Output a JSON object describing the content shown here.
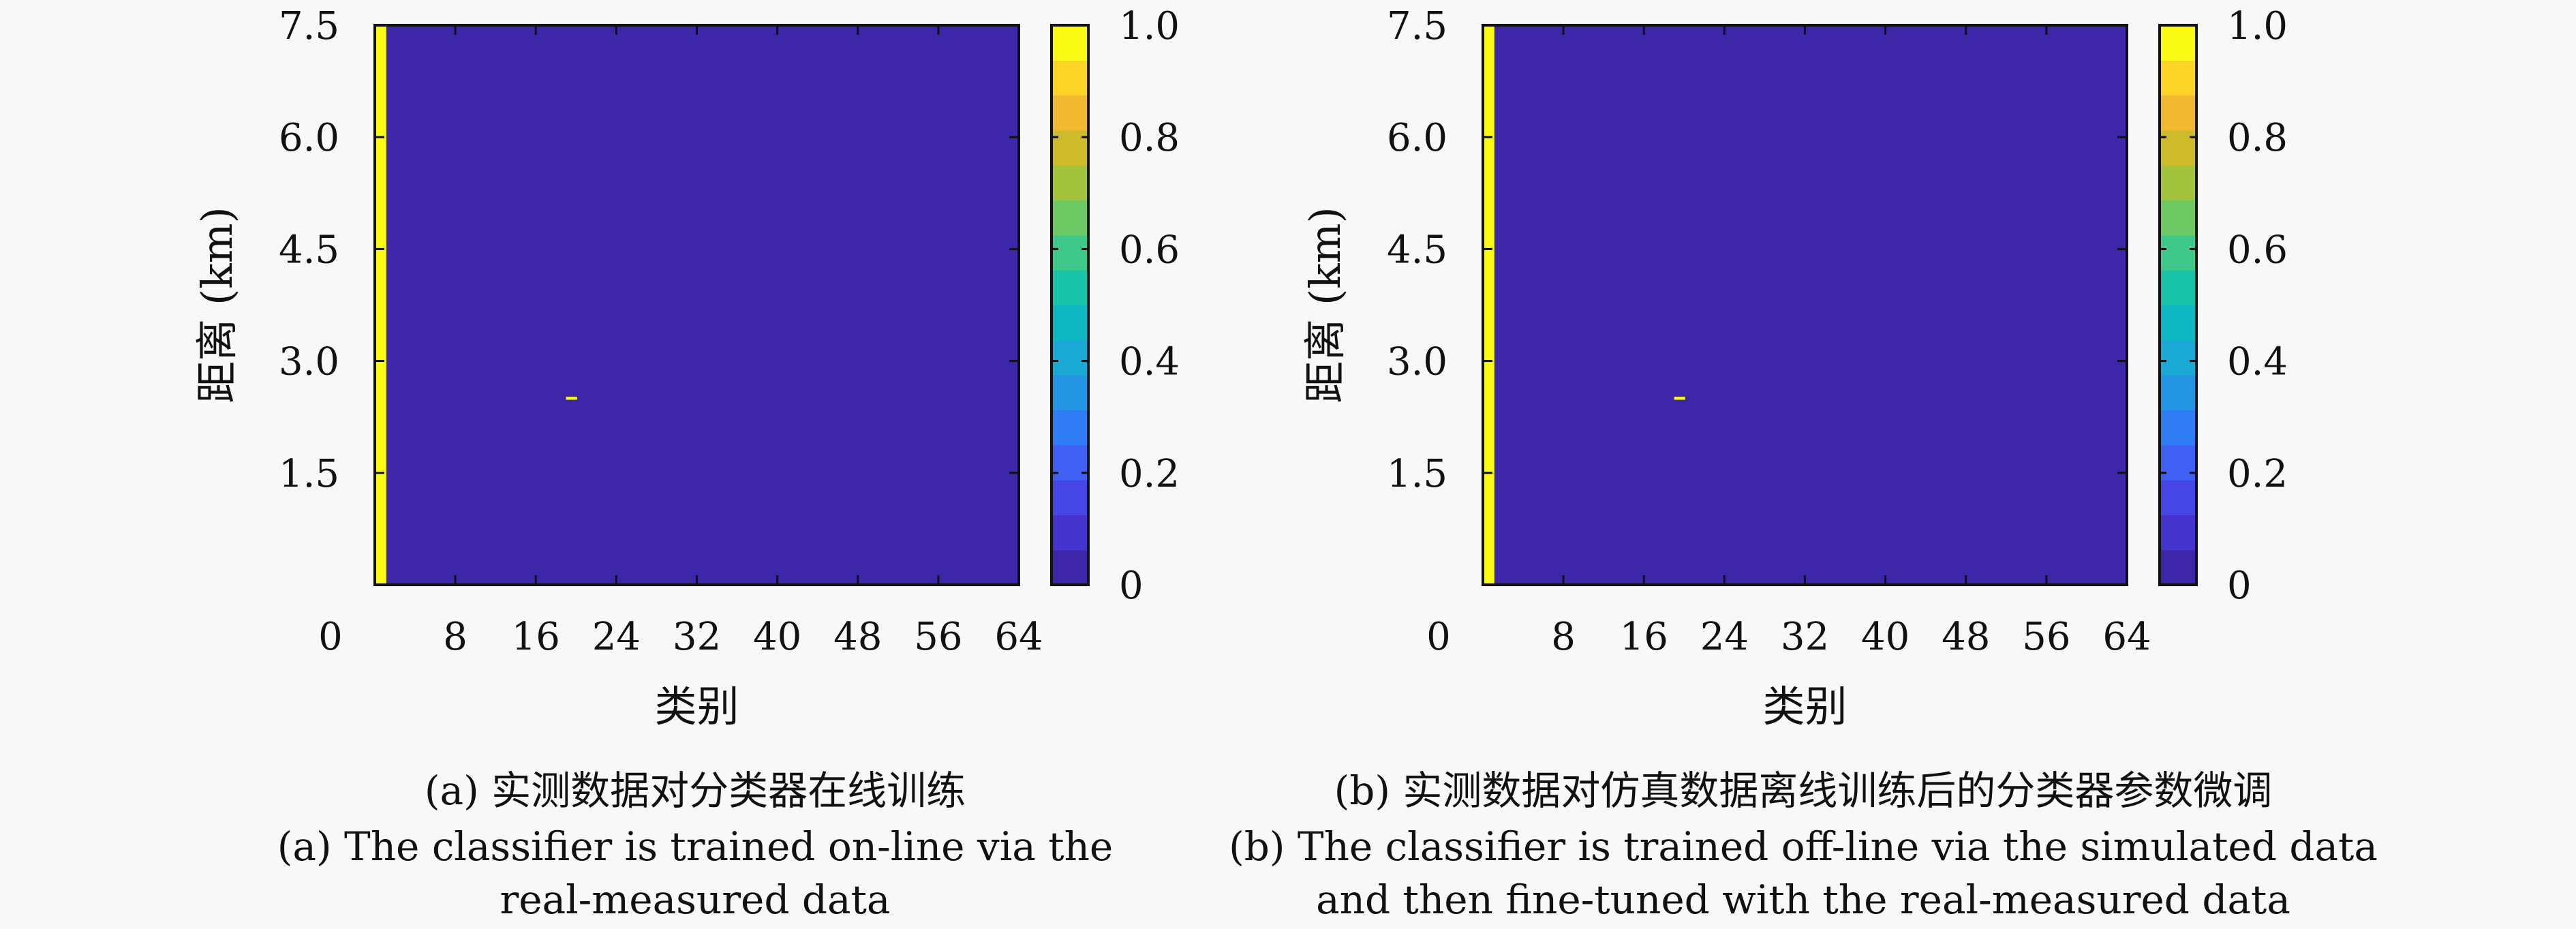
{
  "chart_data": [
    {
      "type": "heatmap",
      "panel_label": "(a)",
      "caption_cn": "(a) 实测数据对分类器在线训练",
      "caption_en_lines": [
        "(a) The classifier is trained on-line via the",
        "real-measured data"
      ],
      "xlabel": "类别",
      "ylabel": "距离 (km)",
      "xlim": [
        0,
        64
      ],
      "ylim": [
        0,
        7.5
      ],
      "xticks": [
        "0",
        "8",
        "16",
        "24",
        "32",
        "40",
        "48",
        "56",
        "64"
      ],
      "yticks": [
        "1.5",
        "3.0",
        "4.5",
        "6.0",
        "7.5"
      ],
      "colorbar": {
        "min": 0,
        "max": 1,
        "ticks": [
          "0",
          "0.2",
          "0.4",
          "0.6",
          "0.8",
          "1.0"
        ]
      },
      "background_value": 0,
      "cells": [
        {
          "class": 0,
          "range_km": [
            0,
            7.5
          ],
          "value": 1.0
        },
        {
          "class": 19,
          "range_km": [
            2.48,
            2.52
          ],
          "value": 1.0
        }
      ]
    },
    {
      "type": "heatmap",
      "panel_label": "(b)",
      "caption_cn": "(b) 实测数据对仿真数据离线训练后的分类器参数微调",
      "caption_en_lines": [
        "(b) The classifier is trained off-line via the simulated data",
        "and then fine-tuned with the real-measured data"
      ],
      "xlabel": "类别",
      "ylabel": "距离 (km)",
      "xlim": [
        0,
        64
      ],
      "ylim": [
        0,
        7.5
      ],
      "xticks": [
        "0",
        "8",
        "16",
        "24",
        "32",
        "40",
        "48",
        "56",
        "64"
      ],
      "yticks": [
        "1.5",
        "3.0",
        "4.5",
        "6.0",
        "7.5"
      ],
      "colorbar": {
        "min": 0,
        "max": 1,
        "ticks": [
          "0",
          "0.2",
          "0.4",
          "0.6",
          "0.8",
          "1.0"
        ]
      },
      "background_value": 0,
      "cells": [
        {
          "class": 0,
          "range_km": [
            0,
            7.5
          ],
          "value": 1.0
        },
        {
          "class": 19,
          "range_km": [
            2.48,
            2.52
          ],
          "value": 1.0
        }
      ]
    }
  ],
  "colormap": [
    "#3e26a8",
    "#4433cc",
    "#4646e6",
    "#4060f5",
    "#2f7cf5",
    "#2495e3",
    "#1aa9d5",
    "#0db8c2",
    "#18c3a7",
    "#3ec88a",
    "#6dc963",
    "#a3c33d",
    "#cdbb29",
    "#f0b931",
    "#fbd426",
    "#f9fb15"
  ],
  "colors": {
    "background": "#f8f8f8",
    "plot_bg": "#3e26a8",
    "high": "#f9fb15"
  }
}
